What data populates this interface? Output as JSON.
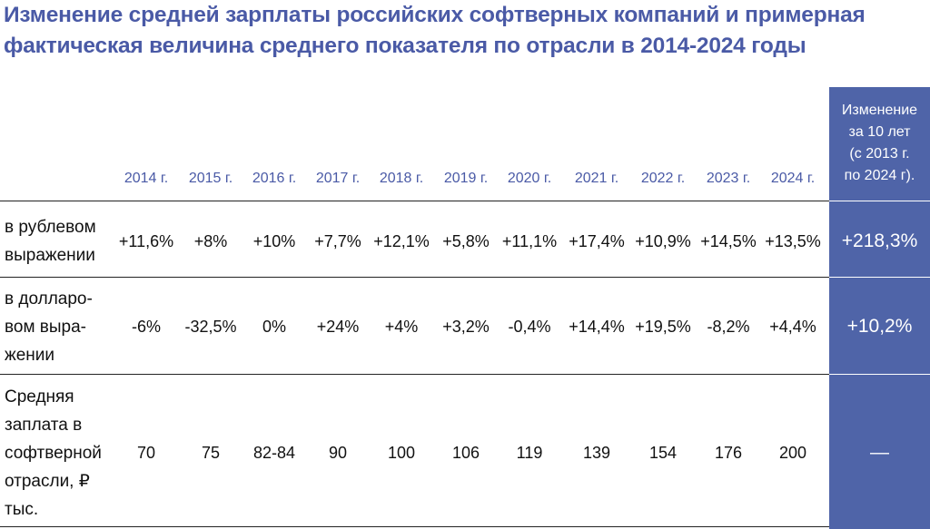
{
  "title": {
    "line1": "Изменение средней зарплаты российских софтверных компаний и примерная",
    "line2": "фактическая величина среднего показателя по отрасли в 2014-2024 годы"
  },
  "header": {
    "years": [
      "2014 г.",
      "2015 г.",
      "2016 г.",
      "2017 г.",
      "2018 г.",
      "2019 г.",
      "2020 г.",
      "2021 г.",
      "2022 г.",
      "2023 г.",
      "2024 г."
    ],
    "change_col": [
      "Изменение",
      "за 10 лет",
      "(с 2013 г.",
      "по 2024 г)."
    ]
  },
  "rows": [
    {
      "label": [
        "в рублевом",
        "выражении"
      ],
      "values": [
        "+11,6%",
        "+8%",
        "+10%",
        "+7,7%",
        "+12,1%",
        "+5,8%",
        "+11,1%",
        "+17,4%",
        "+10,9%",
        "+14,5%",
        "+13,5%"
      ],
      "change": "+218,3%"
    },
    {
      "label": [
        "в долларо-",
        "вом выра-",
        "жении"
      ],
      "values": [
        "-6%",
        "-32,5%",
        "0%",
        "+24%",
        "+4%",
        "+3,2%",
        "-0,4%",
        "+14,4%",
        "+19,5%",
        "-8,2%",
        "+4,4%"
      ],
      "change": "+10,2%"
    },
    {
      "label": [
        "Средняя",
        "заплата в",
        "софтверной",
        "отрасли, ₽",
        "тыс."
      ],
      "values": [
        "70",
        "75",
        "82-84",
        "90",
        "100",
        "106",
        "119",
        "139",
        "154",
        "176",
        "200"
      ],
      "change": "—"
    }
  ],
  "colors": {
    "title": "#4a5aa6",
    "highlight_column": "#4f64a8"
  }
}
